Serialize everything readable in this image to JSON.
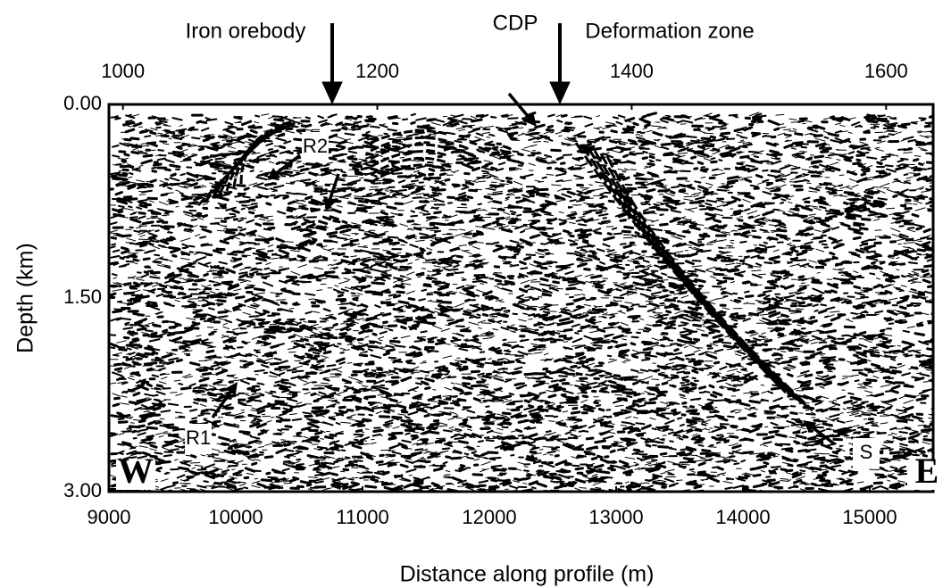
{
  "chart_data": {
    "type": "seismic-section",
    "xlabel": "Distance along profile (m)",
    "ylabel": "Depth (km)",
    "x2label": "CDP",
    "xlim": [
      9000,
      15500
    ],
    "xticks": [
      9000,
      10000,
      11000,
      12000,
      13000,
      14000,
      15000
    ],
    "x2lim": [
      989,
      1637
    ],
    "x2ticks": [
      1000,
      1200,
      1400,
      1600
    ],
    "ylim": [
      0,
      3
    ],
    "y_inverted": true,
    "yticks": [
      {
        "value": 0,
        "label": "0.00"
      },
      {
        "value": 1.5,
        "label": "1.50"
      },
      {
        "value": 3,
        "label": "3.00"
      }
    ],
    "annotations": [
      "Iron orebody",
      "Deformation zone",
      "R2",
      "R1",
      "S",
      "W",
      "E"
    ]
  }
}
